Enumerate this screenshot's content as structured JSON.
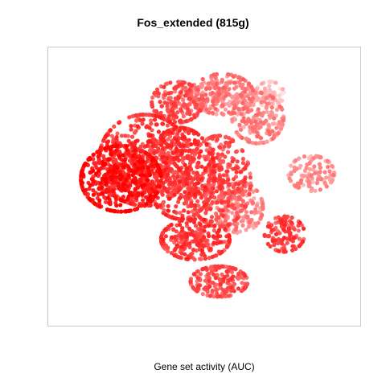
{
  "chart_data": {
    "type": "scatter",
    "title": "Fos_extended (815g)",
    "xlabel": "Gene set activity (AUC)",
    "ylabel": "",
    "axes_visible": false,
    "grid": false,
    "legend": "none",
    "color_scale": {
      "low": "#ffe4e4",
      "high": "#ff0000"
    },
    "clusters": [
      {
        "name": "left-core",
        "cx": 0.22,
        "cy": 0.47,
        "rx": 0.14,
        "ry": 0.13,
        "n": 520,
        "level": 0.88
      },
      {
        "name": "left-mid",
        "cx": 0.3,
        "cy": 0.4,
        "rx": 0.16,
        "ry": 0.18,
        "n": 480,
        "level": 0.72
      },
      {
        "name": "center",
        "cx": 0.42,
        "cy": 0.45,
        "rx": 0.12,
        "ry": 0.18,
        "n": 460,
        "level": 0.7
      },
      {
        "name": "center-right",
        "cx": 0.55,
        "cy": 0.48,
        "rx": 0.11,
        "ry": 0.18,
        "n": 360,
        "level": 0.62
      },
      {
        "name": "top-center",
        "cx": 0.41,
        "cy": 0.18,
        "rx": 0.09,
        "ry": 0.08,
        "n": 200,
        "level": 0.6
      },
      {
        "name": "top-right",
        "cx": 0.56,
        "cy": 0.15,
        "rx": 0.11,
        "ry": 0.08,
        "n": 240,
        "level": 0.42
      },
      {
        "name": "upper-right",
        "cx": 0.68,
        "cy": 0.24,
        "rx": 0.09,
        "ry": 0.1,
        "n": 200,
        "level": 0.38
      },
      {
        "name": "far-top-right",
        "cx": 0.72,
        "cy": 0.15,
        "rx": 0.05,
        "ry": 0.05,
        "n": 70,
        "level": 0.12
      },
      {
        "name": "right-mid",
        "cx": 0.62,
        "cy": 0.58,
        "rx": 0.08,
        "ry": 0.1,
        "n": 170,
        "level": 0.4
      },
      {
        "name": "bottom-center",
        "cx": 0.47,
        "cy": 0.7,
        "rx": 0.12,
        "ry": 0.08,
        "n": 260,
        "level": 0.7
      },
      {
        "name": "bottom",
        "cx": 0.55,
        "cy": 0.86,
        "rx": 0.1,
        "ry": 0.06,
        "n": 170,
        "level": 0.62
      },
      {
        "name": "island-right",
        "cx": 0.86,
        "cy": 0.45,
        "rx": 0.08,
        "ry": 0.07,
        "n": 130,
        "level": 0.32
      },
      {
        "name": "island-low",
        "cx": 0.77,
        "cy": 0.68,
        "rx": 0.07,
        "ry": 0.07,
        "n": 110,
        "level": 0.68
      }
    ]
  }
}
